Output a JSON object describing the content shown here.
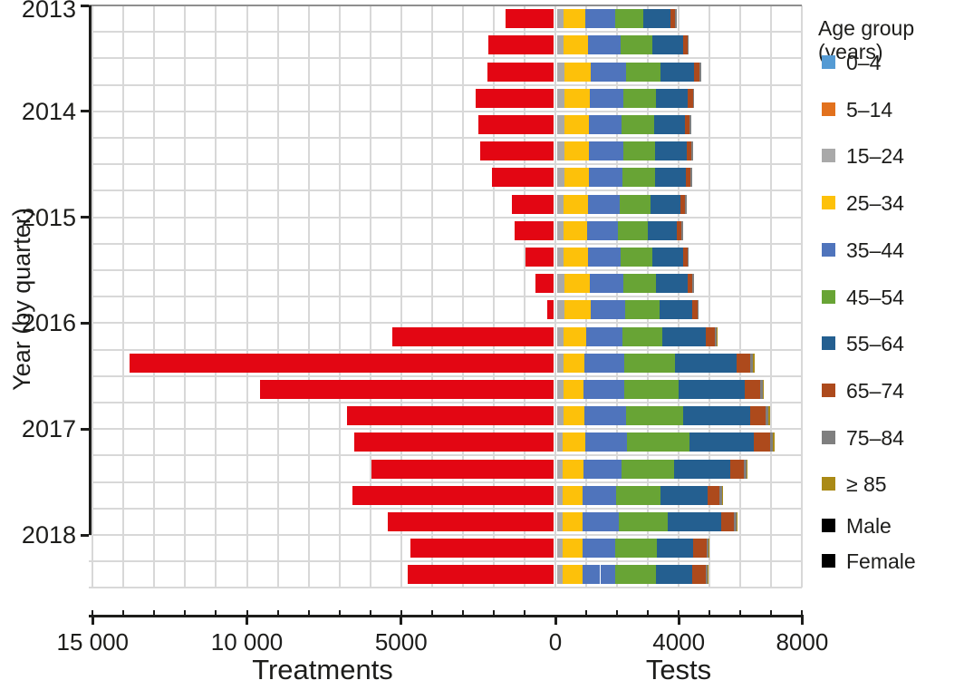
{
  "chart_data": {
    "type": "diverging_stacked_bar",
    "x_axis": {
      "left_label": "Treatments",
      "right_label": "Tests",
      "left_ticks": [
        {
          "value": 15000,
          "label": "15 000"
        },
        {
          "value": 10000,
          "label": "10 000"
        },
        {
          "value": 5000,
          "label": "5000"
        }
      ],
      "zero_tick": {
        "value": 0,
        "label": "0"
      },
      "right_ticks": [
        {
          "value": 4000,
          "label": "4000"
        },
        {
          "value": 8000,
          "label": "8000"
        }
      ],
      "left_max": 15000,
      "right_max": 8000,
      "gridline_step": 1000
    },
    "y_axis": {
      "label": "Year (by quarter)",
      "years": [
        "2013",
        "2014",
        "2015",
        "2016",
        "2017",
        "2018"
      ]
    },
    "legend": {
      "title": "Age group (years)",
      "age_groups": [
        {
          "label": "0–4",
          "color": "#559bd4"
        },
        {
          "label": "5–14",
          "color": "#e2711d"
        },
        {
          "label": "15–24",
          "color": "#a9a9a9"
        },
        {
          "label": "25–34",
          "color": "#fdc10a"
        },
        {
          "label": "35–44",
          "color": "#4f74bc"
        },
        {
          "label": "45–54",
          "color": "#68a435"
        },
        {
          "label": "55–64",
          "color": "#245f90"
        },
        {
          "label": "65–74",
          "color": "#ad4a1c"
        },
        {
          "label": "75–84",
          "color": "#7f7f7f"
        },
        {
          "label": "≥ 85",
          "color": "#aa8a16"
        }
      ],
      "sex_patterns": [
        {
          "label": "Male",
          "pattern": "solid",
          "color": "#000000"
        },
        {
          "label": "Female",
          "pattern": "hatched",
          "color": "#000000"
        }
      ]
    },
    "colors": {
      "treatments": "#e30613",
      "grid": "#d8d8d8"
    },
    "quarters": [
      {
        "year": 2013,
        "quarter": "Q1",
        "treatments": 1550,
        "tests": {
          "15–24": [
            85,
            125
          ],
          "25–34": [
            400,
            320
          ],
          "35–44": [
            530,
            420
          ],
          "45–54": [
            580,
            340
          ],
          "55–64": [
            580,
            320
          ],
          "65–74": [
            90,
            45
          ],
          "75–84": [
            20,
            20
          ],
          "≥ 85": [
            10,
            10
          ]
        }
      },
      {
        "year": 2013,
        "quarter": "Q2",
        "treatments": 2100,
        "tests": {
          "15–24": [
            90,
            140
          ],
          "25–34": [
            440,
            350
          ],
          "35–44": [
            585,
            470
          ],
          "45–54": [
            640,
            380
          ],
          "55–64": [
            640,
            350
          ],
          "65–74": [
            100,
            50
          ],
          "75–84": [
            20,
            20
          ],
          "≥ 85": [
            10,
            10
          ]
        }
      },
      {
        "year": 2013,
        "quarter": "Q3",
        "treatments": 2130,
        "tests": {
          "15–24": [
            100,
            150
          ],
          "25–34": [
            480,
            380
          ],
          "35–44": [
            640,
            510
          ],
          "45–54": [
            700,
            415
          ],
          "55–64": [
            700,
            380
          ],
          "65–74": [
            110,
            55
          ],
          "75–84": [
            25,
            20
          ],
          "≥ 85": [
            10,
            10
          ]
        }
      },
      {
        "year": 2013,
        "quarter": "Q4",
        "treatments": 2520,
        "tests": {
          "15–24": [
            95,
            145
          ],
          "25–34": [
            460,
            365
          ],
          "35–44": [
            610,
            490
          ],
          "45–54": [
            665,
            395
          ],
          "55–64": [
            665,
            365
          ],
          "65–74": [
            105,
            50
          ],
          "75–84": [
            20,
            20
          ],
          "≥ 85": [
            10,
            10
          ]
        }
      },
      {
        "year": 2014,
        "quarter": "Q1",
        "treatments": 2450,
        "tests": {
          "15–24": [
            95,
            140
          ],
          "25–34": [
            450,
            355
          ],
          "35–44": [
            595,
            475
          ],
          "45–54": [
            650,
            385
          ],
          "55–64": [
            650,
            355
          ],
          "65–74": [
            100,
            50
          ],
          "75–84": [
            20,
            20
          ],
          "≥ 85": [
            10,
            10
          ]
        }
      },
      {
        "year": 2014,
        "quarter": "Q2",
        "treatments": 2380,
        "tests": {
          "15–24": [
            95,
            145
          ],
          "25–34": [
            455,
            360
          ],
          "35–44": [
            605,
            485
          ],
          "45–54": [
            660,
            390
          ],
          "55–64": [
            660,
            360
          ],
          "65–74": [
            105,
            50
          ],
          "75–84": [
            20,
            20
          ],
          "≥ 85": [
            10,
            10
          ]
        }
      },
      {
        "year": 2014,
        "quarter": "Q3",
        "treatments": 2000,
        "tests": {
          "15–24": [
            95,
            145
          ],
          "25–34": [
            455,
            360
          ],
          "35–44": [
            600,
            480
          ],
          "45–54": [
            655,
            390
          ],
          "55–64": [
            655,
            355
          ],
          "65–74": [
            100,
            50
          ],
          "75–84": [
            20,
            20
          ],
          "≥ 85": [
            10,
            10
          ]
        }
      },
      {
        "year": 2014,
        "quarter": "Q4",
        "treatments": 1340,
        "tests": {
          "15–24": [
            90,
            135
          ],
          "25–34": [
            435,
            345
          ],
          "35–44": [
            575,
            460
          ],
          "45–54": [
            630,
            370
          ],
          "55–64": [
            625,
            345
          ],
          "65–74": [
            100,
            45
          ],
          "75–84": [
            20,
            20
          ],
          "≥ 85": [
            10,
            10
          ]
        }
      },
      {
        "year": 2015,
        "quarter": "Q1",
        "treatments": 1260,
        "tests": {
          "15–24": [
            90,
            130
          ],
          "25–34": [
            420,
            335
          ],
          "35–44": [
            560,
            450
          ],
          "45–54": [
            610,
            360
          ],
          "55–64": [
            610,
            335
          ],
          "65–74": [
            95,
            45
          ],
          "75–84": [
            20,
            20
          ],
          "≥ 85": [
            10,
            10
          ]
        }
      },
      {
        "year": 2015,
        "quarter": "Q2",
        "treatments": 920,
        "tests": {
          "15–24": [
            90,
            140
          ],
          "25–34": [
            440,
            350
          ],
          "35–44": [
            585,
            470
          ],
          "45–54": [
            640,
            380
          ],
          "55–64": [
            640,
            350
          ],
          "65–74": [
            100,
            50
          ],
          "75–84": [
            20,
            20
          ],
          "≥ 85": [
            10,
            10
          ]
        }
      },
      {
        "year": 2015,
        "quarter": "Q3",
        "treatments": 580,
        "tests": {
          "15–24": [
            95,
            145
          ],
          "25–34": [
            460,
            365
          ],
          "35–44": [
            610,
            485
          ],
          "45–54": [
            665,
            390
          ],
          "55–64": [
            665,
            365
          ],
          "65–74": [
            105,
            50
          ],
          "75–84": [
            20,
            20
          ],
          "≥ 85": [
            10,
            10
          ]
        }
      },
      {
        "year": 2015,
        "quarter": "Q4",
        "treatments": 200,
        "tests": {
          "15–24": [
            100,
            145
          ],
          "25–34": [
            470,
            375
          ],
          "35–44": [
            630,
            505
          ],
          "45–54": [
            690,
            410
          ],
          "55–64": [
            690,
            375
          ],
          "65–74": [
            110,
            55
          ],
          "75–84": [
            25,
            20
          ],
          "≥ 85": [
            10,
            10
          ]
        }
      },
      {
        "year": 2016,
        "quarter": "Q1",
        "treatments": 5230,
        "tests": {
          "15–24": [
            90,
            140
          ],
          "25–34": [
            400,
            330
          ],
          "35–44": [
            680,
            480
          ],
          "45–54": [
            810,
            480
          ],
          "55–64": [
            860,
            560
          ],
          "65–74": [
            210,
            90
          ],
          "75–84": [
            30,
            30
          ],
          "≥ 85": [
            15,
            10
          ]
        }
      },
      {
        "year": 2016,
        "quarter": "Q2",
        "treatments": 13750,
        "tests": {
          "15–24": [
            90,
            140
          ],
          "25–34": [
            370,
            300
          ],
          "35–44": [
            790,
            490
          ],
          "45–54": [
            1040,
            600
          ],
          "55–64": [
            1180,
            820
          ],
          "65–74": [
            320,
            135
          ],
          "75–84": [
            40,
            40
          ],
          "≥ 85": [
            20,
            15
          ]
        }
      },
      {
        "year": 2016,
        "quarter": "Q3",
        "treatments": 9510,
        "tests": {
          "15–24": [
            90,
            140
          ],
          "25–34": [
            350,
            290
          ],
          "35–44": [
            820,
            500
          ],
          "45–54": [
            1110,
            640
          ],
          "55–64": [
            1260,
            880
          ],
          "65–74": [
            350,
            150
          ],
          "75–84": [
            45,
            45
          ],
          "≥ 85": [
            25,
            15
          ]
        }
      },
      {
        "year": 2016,
        "quarter": "Q4",
        "treatments": 6710,
        "tests": {
          "15–24": [
            90,
            130
          ],
          "25–34": [
            370,
            310
          ],
          "35–44": [
            830,
            520
          ],
          "45–54": [
            1180,
            680
          ],
          "55–64": [
            1300,
            850
          ],
          "65–74": [
            370,
            150
          ],
          "75–84": [
            45,
            45
          ],
          "≥ 85": [
            25,
            15
          ]
        }
      },
      {
        "year": 2017,
        "quarter": "Q1",
        "treatments": 6460,
        "tests": {
          "15–24": [
            75,
            115
          ],
          "25–34": [
            390,
            340
          ],
          "35–44": [
            830,
            540
          ],
          "45–54": [
            1270,
            730
          ],
          "55–64": [
            1320,
            780
          ],
          "65–74": [
            390,
            145
          ],
          "75–84": [
            45,
            45
          ],
          "≥ 85": [
            20,
            15
          ]
        }
      },
      {
        "year": 2017,
        "quarter": "Q2",
        "treatments": 5910,
        "tests": {
          "15–24": [
            80,
            120
          ],
          "25–34": [
            360,
            310
          ],
          "35–44": [
            740,
            490
          ],
          "45–54": [
            1080,
            620
          ],
          "55–64": [
            1130,
            680
          ],
          "65–74": [
            330,
            130
          ],
          "75–84": [
            40,
            40
          ],
          "≥ 85": [
            20,
            10
          ]
        }
      },
      {
        "year": 2017,
        "quarter": "Q3",
        "treatments": 6510,
        "tests": {
          "15–24": [
            80,
            120
          ],
          "25–34": [
            340,
            290
          ],
          "35–44": [
            650,
            450
          ],
          "45–54": [
            910,
            530
          ],
          "55–64": [
            950,
            560
          ],
          "65–74": [
            280,
            120
          ],
          "75–84": [
            35,
            35
          ],
          "≥ 85": [
            20,
            10
          ]
        }
      },
      {
        "year": 2017,
        "quarter": "Q4",
        "treatments": 5370,
        "tests": {
          "15–24": [
            80,
            120
          ],
          "25–34": [
            350,
            300
          ],
          "35–44": [
            700,
            470
          ],
          "45–54": [
            1010,
            580
          ],
          "55–64": [
            1070,
            640
          ],
          "65–74": [
            310,
            125
          ],
          "75–84": [
            40,
            35
          ],
          "≥ 85": [
            20,
            10
          ]
        }
      },
      {
        "year": 2018,
        "quarter": "Q1",
        "treatments": 4640,
        "tests": {
          "15–24": [
            80,
            115
          ],
          "25–34": [
            340,
            290
          ],
          "35–44": [
            590,
            490
          ],
          "45–54": [
            840,
            495
          ],
          "55–64": [
            790,
            395
          ],
          "65–74": [
            290,
            145
          ],
          "75–84": [
            30,
            30
          ],
          "≥ 85": [
            20,
            10
          ]
        }
      },
      {
        "year": 2018,
        "quarter": "Q2",
        "treatments": 4720,
        "tests": {
          "15–24": [
            80,
            115
          ],
          "25–34": [
            340,
            290
          ],
          "35–44": [
            585,
            490
          ],
          "45–54": [
            830,
            490
          ],
          "55–64": [
            780,
            390
          ],
          "65–74": [
            290,
            145
          ],
          "75–84": [
            30,
            30
          ],
          "≥ 85": [
            20,
            10
          ]
        }
      }
    ]
  }
}
